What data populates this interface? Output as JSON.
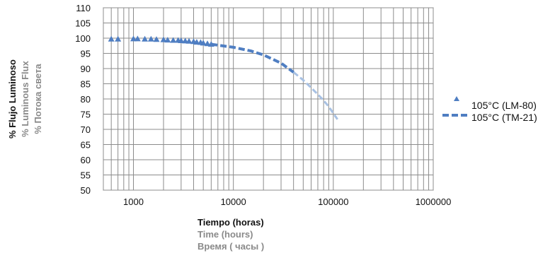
{
  "chart_data": {
    "type": "line",
    "x_scale": "log",
    "xlim": [
      500,
      1000000
    ],
    "ylim": [
      50,
      110
    ],
    "x_ticks": [
      1000,
      10000,
      100000,
      1000000
    ],
    "x_tick_labels": [
      "1000",
      "10000",
      "100000",
      "1000000"
    ],
    "y_ticks": [
      50,
      55,
      60,
      65,
      70,
      75,
      80,
      85,
      90,
      95,
      100,
      105,
      110
    ],
    "y_tick_labels": [
      "50",
      "55",
      "60",
      "65",
      "70",
      "75",
      "80",
      "85",
      "90",
      "95",
      "100",
      "105",
      "110"
    ],
    "grid": true,
    "legend_position": "right",
    "xlabel": [
      "Tiempo (horas)",
      "Time (hours)",
      "Время ( часы )"
    ],
    "ylabel": [
      "% Flujo Luminoso",
      "% Luminous Flux",
      "% Потока  света"
    ],
    "series": [
      {
        "name": "105°C (LM-80)",
        "style": "markers",
        "marker": "triangle",
        "color": "#4f7ec2",
        "x": [
          600,
          700,
          1000,
          1100,
          1300,
          1500,
          1700,
          2000,
          2200,
          2500,
          2800,
          3000,
          3300,
          3600,
          4000,
          4300,
          4700,
          5000,
          5500,
          6000
        ],
        "y": [
          99.7,
          99.7,
          99.8,
          99.8,
          99.7,
          99.7,
          99.6,
          99.5,
          99.4,
          99.3,
          99.3,
          99.2,
          99.1,
          99.0,
          98.9,
          98.7,
          98.6,
          98.4,
          98.2,
          98.0
        ]
      },
      {
        "name": "105°C (TM-21)",
        "style": "dashed",
        "color": "#4f7ec2",
        "light_color": "#a8c1e3",
        "x": [
          6000,
          10000,
          15000,
          20000,
          30000,
          40000,
          50000,
          60000,
          70000,
          80000,
          90000,
          100000,
          110000
        ],
        "y": [
          98.0,
          97.0,
          95.8,
          94.5,
          91.8,
          88.8,
          86.2,
          83.7,
          81.5,
          79.5,
          77.5,
          75.3,
          73.3
        ],
        "light_after_x": 40000
      }
    ]
  }
}
